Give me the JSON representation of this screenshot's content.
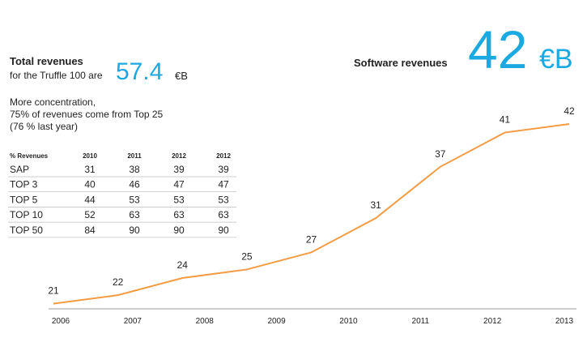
{
  "summary": {
    "total_title": "Total revenues",
    "total_sub": "for the Truffle 100 are",
    "total_value": "57.4",
    "total_unit": "€B",
    "notes": [
      "More concentration,",
      "75% of revenues come from Top 25",
      "(76 % last year)"
    ]
  },
  "table": {
    "header": [
      "% Revenues",
      "2010",
      "2011",
      "2012",
      "2012"
    ],
    "rows": [
      [
        "SAP",
        "31",
        "38",
        "39",
        "39"
      ],
      [
        "TOP 3",
        "40",
        "46",
        "47",
        "47"
      ],
      [
        "TOP 5",
        "44",
        "53",
        "53",
        "53"
      ],
      [
        "TOP 10",
        "52",
        "63",
        "63",
        "63"
      ],
      [
        "TOP 50",
        "84",
        "90",
        "90",
        "90"
      ]
    ]
  },
  "chart_data": {
    "type": "line",
    "title": "Software revenues",
    "headline_value": "42",
    "headline_unit": "€B",
    "xticks": [
      "2006",
      "2007",
      "2008",
      "2009",
      "2010",
      "2011",
      "2012",
      "2013"
    ],
    "values": [
      21,
      22,
      24,
      25,
      27,
      31,
      37,
      41,
      42
    ],
    "color": "#f39c45",
    "headline_color": "#1ba9e1",
    "ylim": [
      20.4,
      54.6
    ]
  }
}
